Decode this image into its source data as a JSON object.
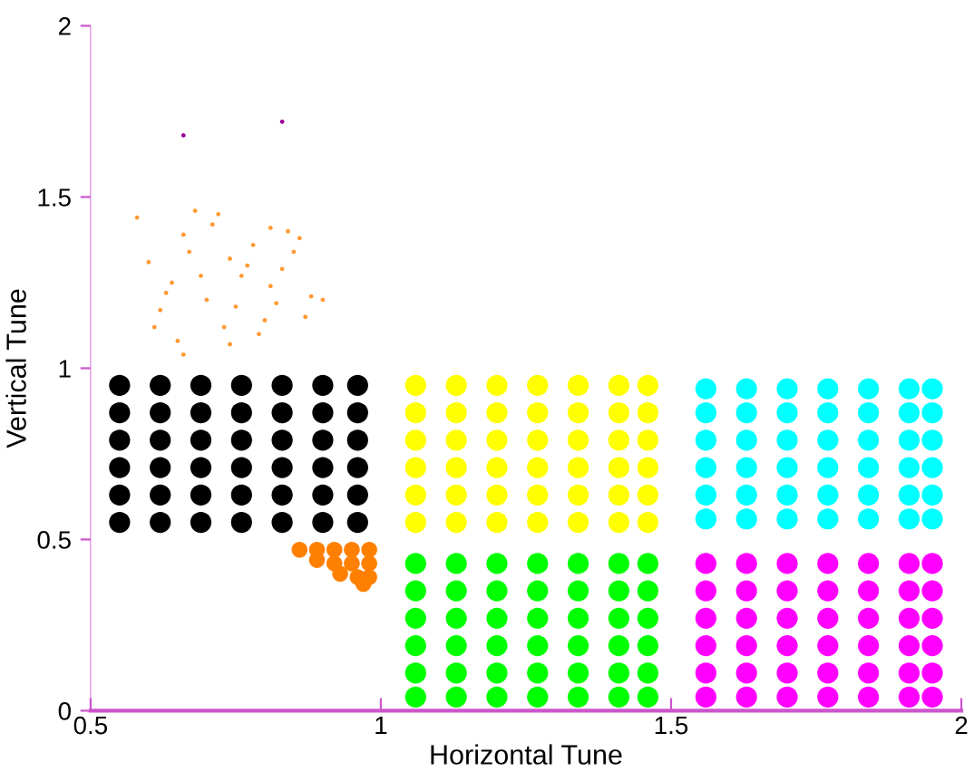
{
  "chart_data": {
    "type": "scatter",
    "xlabel": "Horizontal Tune",
    "ylabel": "Vertical Tune",
    "xlim": [
      0.5,
      2
    ],
    "ylim": [
      0,
      2
    ],
    "xticks": [
      0.5,
      1,
      1.5,
      2
    ],
    "yticks": [
      0,
      0.5,
      1,
      1.5,
      2
    ],
    "grid": false,
    "marker": "circle",
    "series": [
      {
        "color": "#000000",
        "x": [
          0.55,
          0.62,
          0.69,
          0.76,
          0.83,
          0.9,
          0.96,
          0.55,
          0.62,
          0.69,
          0.76,
          0.83,
          0.9,
          0.96,
          0.55,
          0.62,
          0.69,
          0.76,
          0.83,
          0.9,
          0.96,
          0.55,
          0.62,
          0.69,
          0.76,
          0.83,
          0.9,
          0.96,
          0.55,
          0.62,
          0.69,
          0.76,
          0.83,
          0.9,
          0.96,
          0.55,
          0.62,
          0.69,
          0.76,
          0.83,
          0.9,
          0.96
        ],
        "values": [
          0.55,
          0.55,
          0.55,
          0.55,
          0.55,
          0.55,
          0.55,
          0.63,
          0.63,
          0.63,
          0.63,
          0.63,
          0.63,
          0.63,
          0.71,
          0.71,
          0.71,
          0.71,
          0.71,
          0.71,
          0.71,
          0.79,
          0.79,
          0.79,
          0.79,
          0.79,
          0.79,
          0.79,
          0.87,
          0.87,
          0.87,
          0.87,
          0.87,
          0.87,
          0.87,
          0.95,
          0.95,
          0.95,
          0.95,
          0.95,
          0.95,
          0.95
        ]
      },
      {
        "color": "#ffff00",
        "x": [
          1.06,
          1.13,
          1.2,
          1.27,
          1.34,
          1.41,
          1.46,
          1.06,
          1.13,
          1.2,
          1.27,
          1.34,
          1.41,
          1.46,
          1.06,
          1.13,
          1.2,
          1.27,
          1.34,
          1.41,
          1.46,
          1.06,
          1.13,
          1.2,
          1.27,
          1.34,
          1.41,
          1.46,
          1.06,
          1.13,
          1.2,
          1.27,
          1.34,
          1.41,
          1.46,
          1.06,
          1.13,
          1.2,
          1.27,
          1.34,
          1.41,
          1.46
        ],
        "values": [
          0.55,
          0.55,
          0.55,
          0.55,
          0.55,
          0.55,
          0.55,
          0.63,
          0.63,
          0.63,
          0.63,
          0.63,
          0.63,
          0.63,
          0.71,
          0.71,
          0.71,
          0.71,
          0.71,
          0.71,
          0.71,
          0.79,
          0.79,
          0.79,
          0.79,
          0.79,
          0.79,
          0.79,
          0.87,
          0.87,
          0.87,
          0.87,
          0.87,
          0.87,
          0.87,
          0.95,
          0.95,
          0.95,
          0.95,
          0.95,
          0.95,
          0.95
        ]
      },
      {
        "color": "#00ffff",
        "x": [
          1.56,
          1.63,
          1.7,
          1.77,
          1.84,
          1.91,
          1.95,
          1.56,
          1.63,
          1.7,
          1.77,
          1.84,
          1.91,
          1.95,
          1.56,
          1.63,
          1.7,
          1.77,
          1.84,
          1.91,
          1.95,
          1.56,
          1.63,
          1.7,
          1.77,
          1.84,
          1.91,
          1.95,
          1.56,
          1.63,
          1.7,
          1.77,
          1.84,
          1.91,
          1.95,
          1.56,
          1.63,
          1.7,
          1.77,
          1.84,
          1.91,
          1.95
        ],
        "values": [
          0.56,
          0.56,
          0.56,
          0.56,
          0.56,
          0.56,
          0.56,
          0.63,
          0.63,
          0.63,
          0.63,
          0.63,
          0.63,
          0.63,
          0.71,
          0.71,
          0.71,
          0.71,
          0.71,
          0.71,
          0.71,
          0.79,
          0.79,
          0.79,
          0.79,
          0.79,
          0.79,
          0.79,
          0.87,
          0.87,
          0.87,
          0.87,
          0.87,
          0.87,
          0.87,
          0.94,
          0.94,
          0.94,
          0.94,
          0.94,
          0.94,
          0.94
        ]
      },
      {
        "color": "#00ff00",
        "x": [
          1.06,
          1.13,
          1.2,
          1.27,
          1.34,
          1.41,
          1.46,
          1.06,
          1.13,
          1.2,
          1.27,
          1.34,
          1.41,
          1.46,
          1.06,
          1.13,
          1.2,
          1.27,
          1.34,
          1.41,
          1.46,
          1.06,
          1.13,
          1.2,
          1.27,
          1.34,
          1.41,
          1.46,
          1.06,
          1.13,
          1.2,
          1.27,
          1.34,
          1.41,
          1.46,
          1.06,
          1.13,
          1.2,
          1.27,
          1.34,
          1.41,
          1.46
        ],
        "values": [
          0.04,
          0.04,
          0.04,
          0.04,
          0.04,
          0.04,
          0.04,
          0.11,
          0.11,
          0.11,
          0.11,
          0.11,
          0.11,
          0.11,
          0.19,
          0.19,
          0.19,
          0.19,
          0.19,
          0.19,
          0.19,
          0.27,
          0.27,
          0.27,
          0.27,
          0.27,
          0.27,
          0.27,
          0.35,
          0.35,
          0.35,
          0.35,
          0.35,
          0.35,
          0.35,
          0.43,
          0.43,
          0.43,
          0.43,
          0.43,
          0.43,
          0.43
        ]
      },
      {
        "color": "#ff00ff",
        "x": [
          1.56,
          1.63,
          1.7,
          1.77,
          1.84,
          1.91,
          1.95,
          1.56,
          1.63,
          1.7,
          1.77,
          1.84,
          1.91,
          1.95,
          1.56,
          1.63,
          1.7,
          1.77,
          1.84,
          1.91,
          1.95,
          1.56,
          1.63,
          1.7,
          1.77,
          1.84,
          1.91,
          1.95,
          1.56,
          1.63,
          1.7,
          1.77,
          1.84,
          1.91,
          1.95,
          1.56,
          1.63,
          1.7,
          1.77,
          1.84,
          1.91,
          1.95
        ],
        "values": [
          0.04,
          0.04,
          0.04,
          0.04,
          0.04,
          0.04,
          0.04,
          0.11,
          0.11,
          0.11,
          0.11,
          0.11,
          0.11,
          0.11,
          0.19,
          0.19,
          0.19,
          0.19,
          0.19,
          0.19,
          0.19,
          0.27,
          0.27,
          0.27,
          0.27,
          0.27,
          0.27,
          0.27,
          0.35,
          0.35,
          0.35,
          0.35,
          0.35,
          0.35,
          0.35,
          0.43,
          0.43,
          0.43,
          0.43,
          0.43,
          0.43,
          0.43
        ]
      },
      {
        "color": "#ff8000",
        "x": [
          0.86,
          0.89,
          0.92,
          0.95,
          0.98,
          0.89,
          0.92,
          0.95,
          0.98,
          0.93,
          0.96,
          0.98,
          0.97
        ],
        "values": [
          0.47,
          0.47,
          0.47,
          0.47,
          0.47,
          0.44,
          0.43,
          0.43,
          0.43,
          0.4,
          0.39,
          0.39,
          0.37
        ]
      },
      {
        "color": "#ff9933",
        "x": [
          0.58,
          0.6,
          0.63,
          0.66,
          0.69,
          0.72,
          0.75,
          0.78,
          0.81,
          0.84,
          0.87,
          0.61,
          0.65,
          0.7,
          0.74,
          0.79,
          0.83,
          0.88,
          0.62,
          0.67,
          0.71,
          0.76,
          0.8,
          0.86,
          0.64,
          0.68,
          0.73,
          0.77,
          0.82,
          0.85,
          0.9,
          0.66,
          0.74,
          0.81
        ],
        "values": [
          1.44,
          1.31,
          1.22,
          1.39,
          1.27,
          1.45,
          1.18,
          1.36,
          1.24,
          1.4,
          1.15,
          1.12,
          1.08,
          1.2,
          1.32,
          1.1,
          1.29,
          1.21,
          1.17,
          1.34,
          1.42,
          1.27,
          1.14,
          1.38,
          1.25,
          1.46,
          1.12,
          1.3,
          1.19,
          1.34,
          1.2,
          1.04,
          1.07,
          1.41
        ]
      },
      {
        "color": "#990099",
        "x": [
          0.66,
          0.83
        ],
        "values": [
          1.68,
          1.72
        ]
      }
    ]
  }
}
